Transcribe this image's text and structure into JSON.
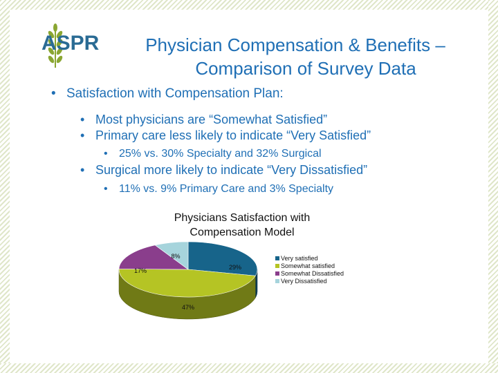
{
  "header": {
    "logo_text": "ASPR",
    "title_line1": "Physician Compensation & Benefits –",
    "title_line2": "Comparison of Survey Data"
  },
  "bullets": {
    "b1": "Satisfaction with Compensation Plan:",
    "b1_1": "Most physicians are “Somewhat Satisfied”",
    "b1_2": "Primary care less likely to indicate “Very Satisfied”",
    "b1_2_1": "25% vs. 30% Specialty and 32% Surgical",
    "b1_3": "Surgical more likely to indicate “Very Dissatisfied”",
    "b1_3_1": "11% vs. 9% Primary Care and 3% Specialty",
    "dot": "•"
  },
  "colors": {
    "accent_blue": "#1f6fb5",
    "very_satisfied": "#17648a",
    "somewhat_satisfied": "#b5c424",
    "somewhat_dissatisfied": "#8a3e8c",
    "very_dissatisfied": "#a6d4dc"
  },
  "chart_data": {
    "type": "pie",
    "title": "Physicians Satisfaction with Compensation Model",
    "title_line1": "Physicians Satisfaction with",
    "title_line2": "Compensation Model",
    "categories": [
      "Very satisfied",
      "Somewhat satisfied",
      "Somewhat Dissatisfied",
      "Very Dissatisfied"
    ],
    "values": [
      29,
      47,
      17,
      8
    ],
    "value_labels": [
      "29%",
      "47%",
      "17%",
      "8%"
    ],
    "colors": [
      "#17648a",
      "#b5c424",
      "#8a3e8c",
      "#a6d4dc"
    ],
    "legend_position": "right",
    "style": "3d"
  }
}
